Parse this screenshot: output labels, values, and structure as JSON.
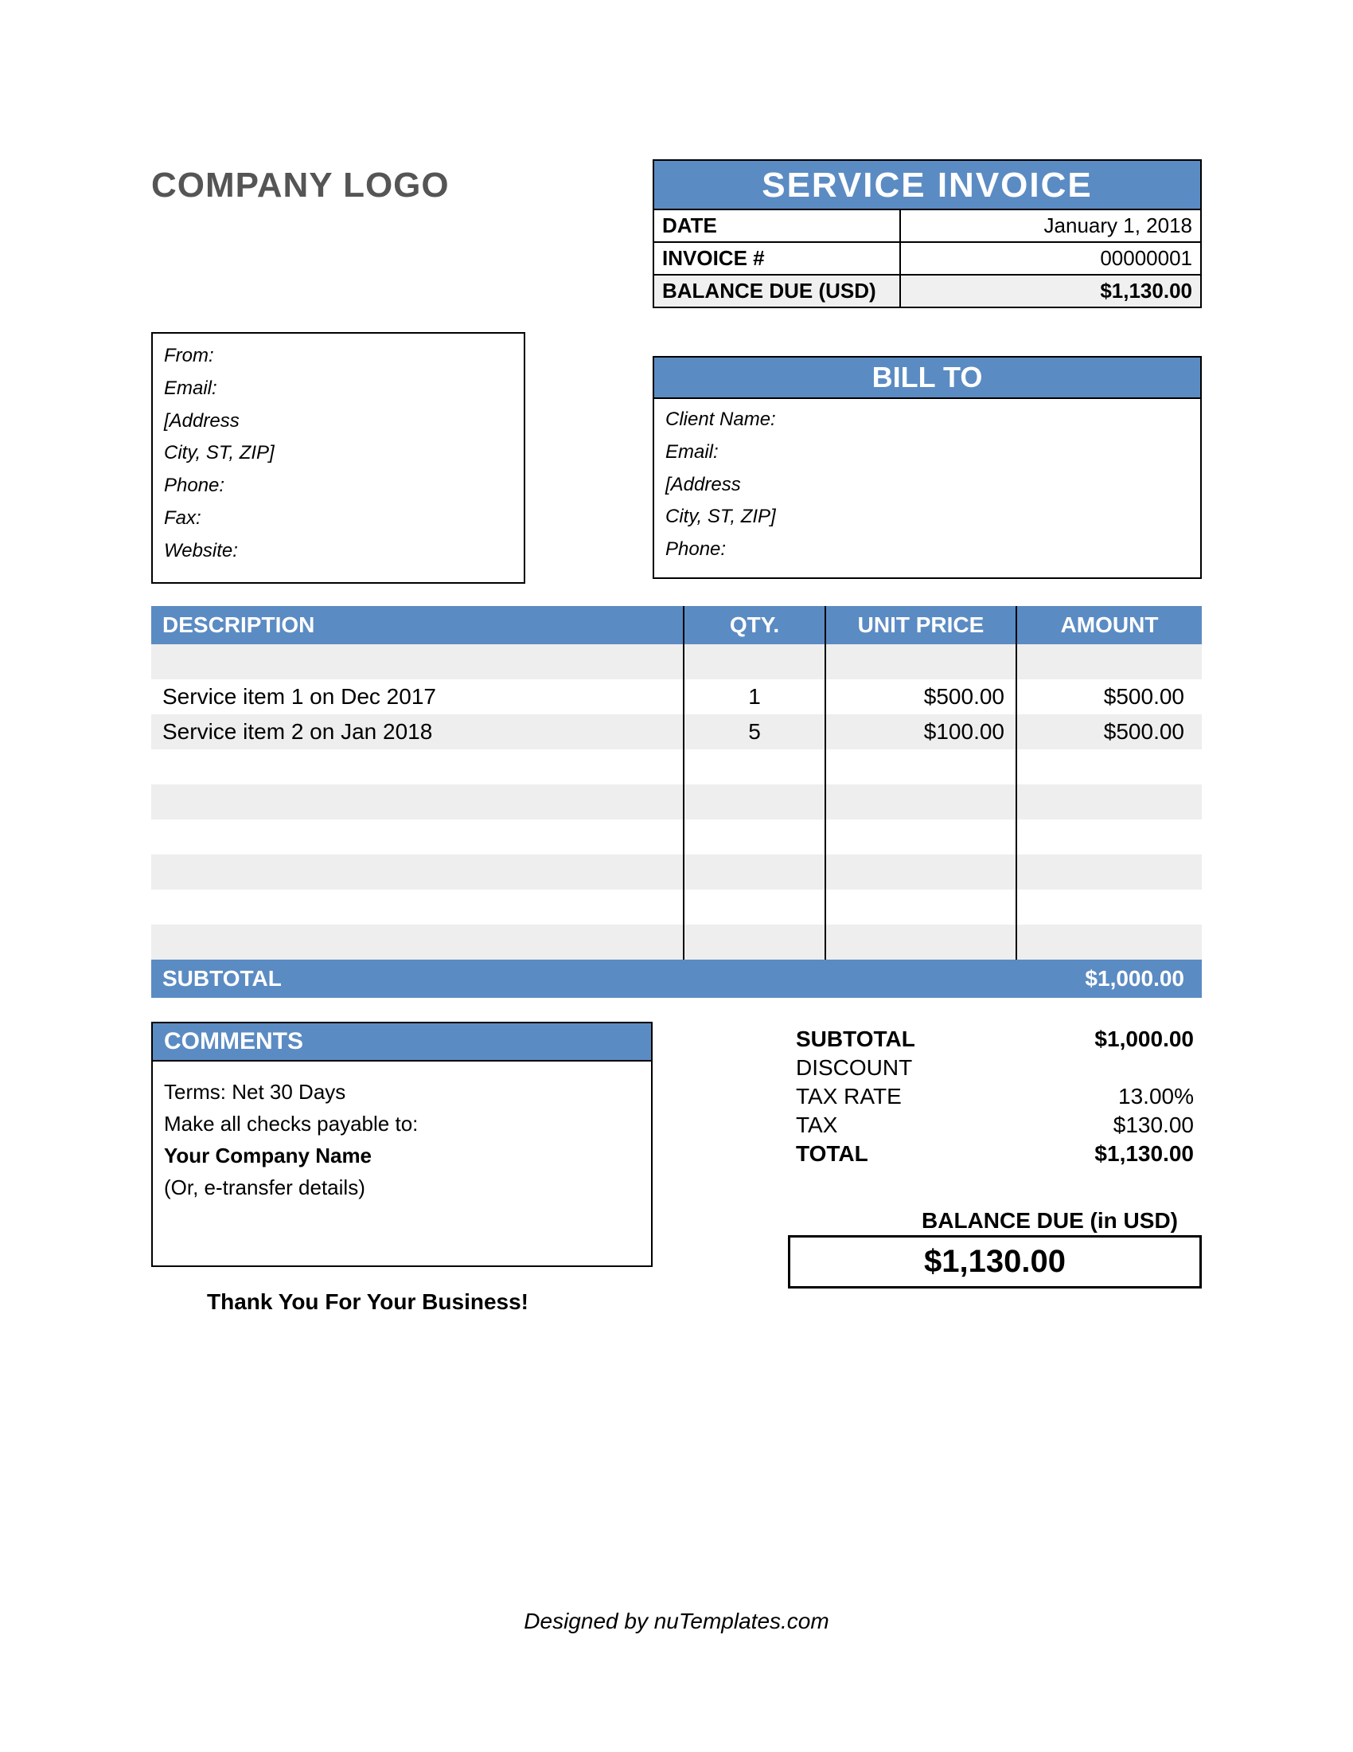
{
  "colors": {
    "accent": "#5b8bc3",
    "stripe": "#eeeeee",
    "background": "#ffffff",
    "text": "#000000",
    "logo_text": "#555555"
  },
  "header": {
    "logo_text": "COMPANY LOGO",
    "title": "SERVICE INVOICE",
    "date_label": "DATE",
    "date_value": "January 1, 2018",
    "invoice_num_label": "INVOICE #",
    "invoice_num_value": "00000001",
    "balance_label": "BALANCE DUE (USD)",
    "balance_value": "$1,130.00"
  },
  "from": {
    "line0": "From:",
    "line1": "Email:",
    "line2": "[Address",
    "line3": "City, ST, ZIP]",
    "line4": "Phone:",
    "line5": "Fax:",
    "line6": "Website:"
  },
  "billto": {
    "title": "BILL TO",
    "line0": "Client Name:",
    "line1": "Email:",
    "line2": "[Address",
    "line3": "City, ST, ZIP]",
    "line4": "Phone:"
  },
  "table": {
    "headers": {
      "description": "DESCRIPTION",
      "qty": "QTY.",
      "unit_price": "UNIT PRICE",
      "amount": "AMOUNT"
    },
    "rows": [
      {
        "description": "",
        "qty": "",
        "unit_price": "",
        "amount": ""
      },
      {
        "description": "Service item 1 on Dec 2017",
        "qty": "1",
        "unit_price": "$500.00",
        "amount": "$500.00"
      },
      {
        "description": "Service item 2 on Jan 2018",
        "qty": "5",
        "unit_price": "$100.00",
        "amount": "$500.00"
      },
      {
        "description": "",
        "qty": "",
        "unit_price": "",
        "amount": ""
      },
      {
        "description": "",
        "qty": "",
        "unit_price": "",
        "amount": ""
      },
      {
        "description": "",
        "qty": "",
        "unit_price": "",
        "amount": ""
      },
      {
        "description": "",
        "qty": "",
        "unit_price": "",
        "amount": ""
      },
      {
        "description": "",
        "qty": "",
        "unit_price": "",
        "amount": ""
      },
      {
        "description": "",
        "qty": "",
        "unit_price": "",
        "amount": ""
      }
    ],
    "subtotal_label": "SUBTOTAL",
    "subtotal_value": "$1,000.00"
  },
  "comments": {
    "title": "COMMENTS",
    "line0": "Terms: Net 30 Days",
    "line1": "",
    "line2": "Make all checks payable to:",
    "line3": "Your Company Name",
    "line4": "(Or, e-transfer details)"
  },
  "thank_you": "Thank You For Your Business!",
  "totals": {
    "subtotal_label": "SUBTOTAL",
    "subtotal_value": "$1,000.00",
    "discount_label": "DISCOUNT",
    "discount_value": "",
    "tax_rate_label": "TAX RATE",
    "tax_rate_value": "13.00%",
    "tax_label": "TAX",
    "tax_value": "$130.00",
    "total_label": "TOTAL",
    "total_value": "$1,130.00",
    "balance_due_caption": "BALANCE DUE (in USD)",
    "balance_due_value": "$1,130.00"
  },
  "footer_credit": "Designed by nuTemplates.com"
}
